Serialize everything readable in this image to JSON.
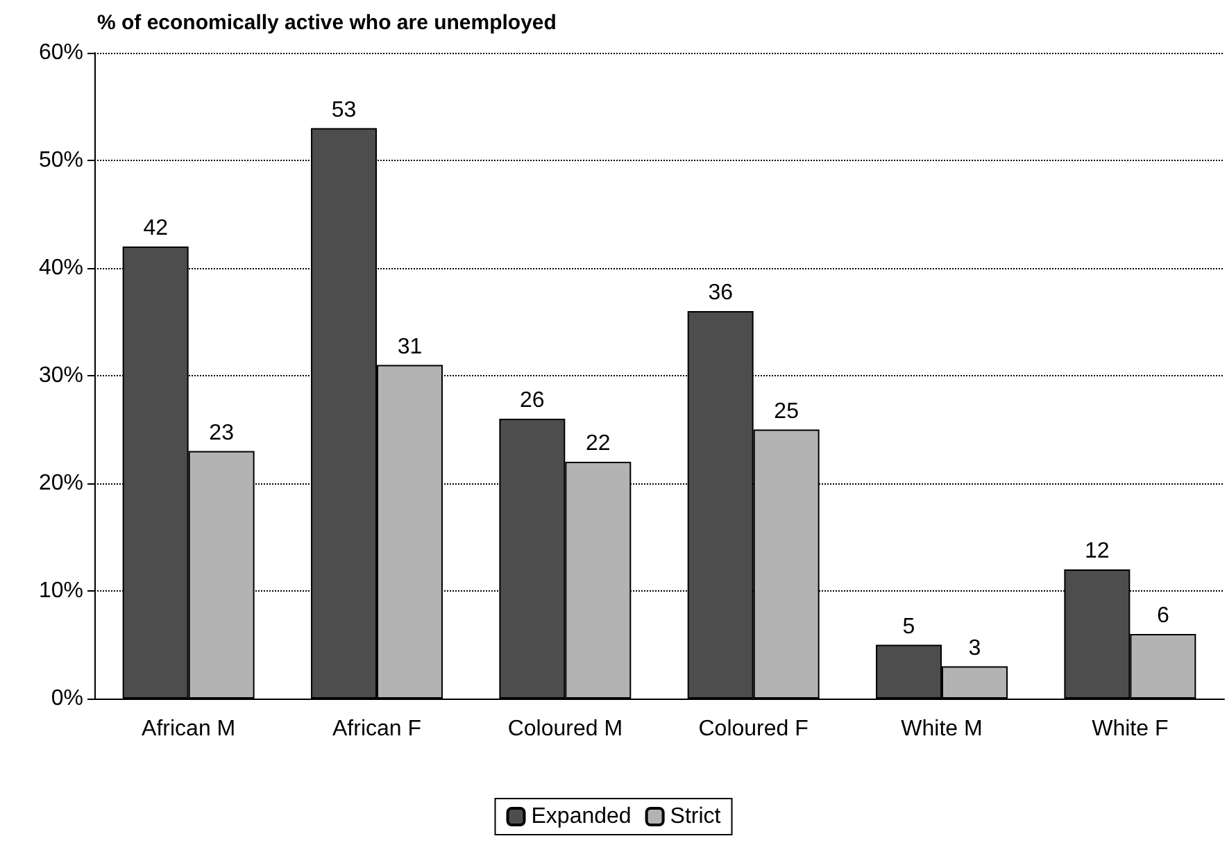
{
  "chart_data": {
    "type": "bar",
    "title": "% of economically active who are unemployed",
    "categories": [
      "African M",
      "African F",
      "Coloured M",
      "Coloured F",
      "White M",
      "White F"
    ],
    "series": [
      {
        "name": "Expanded",
        "color": "#4d4d4d",
        "values": [
          42,
          53,
          26,
          36,
          5,
          12
        ]
      },
      {
        "name": "Strict",
        "color": "#b3b3b3",
        "values": [
          23,
          31,
          22,
          25,
          3,
          6
        ]
      }
    ],
    "ylim": [
      0,
      60
    ],
    "yticks": [
      {
        "value": 0,
        "label": "0%"
      },
      {
        "value": 10,
        "label": "10%"
      },
      {
        "value": 20,
        "label": "20%"
      },
      {
        "value": 30,
        "label": "30%"
      },
      {
        "value": 40,
        "label": "40%"
      },
      {
        "value": 50,
        "label": "50%"
      },
      {
        "value": 60,
        "label": "60%"
      }
    ],
    "grid": "y",
    "legend": "bottom",
    "data_labels": true
  }
}
